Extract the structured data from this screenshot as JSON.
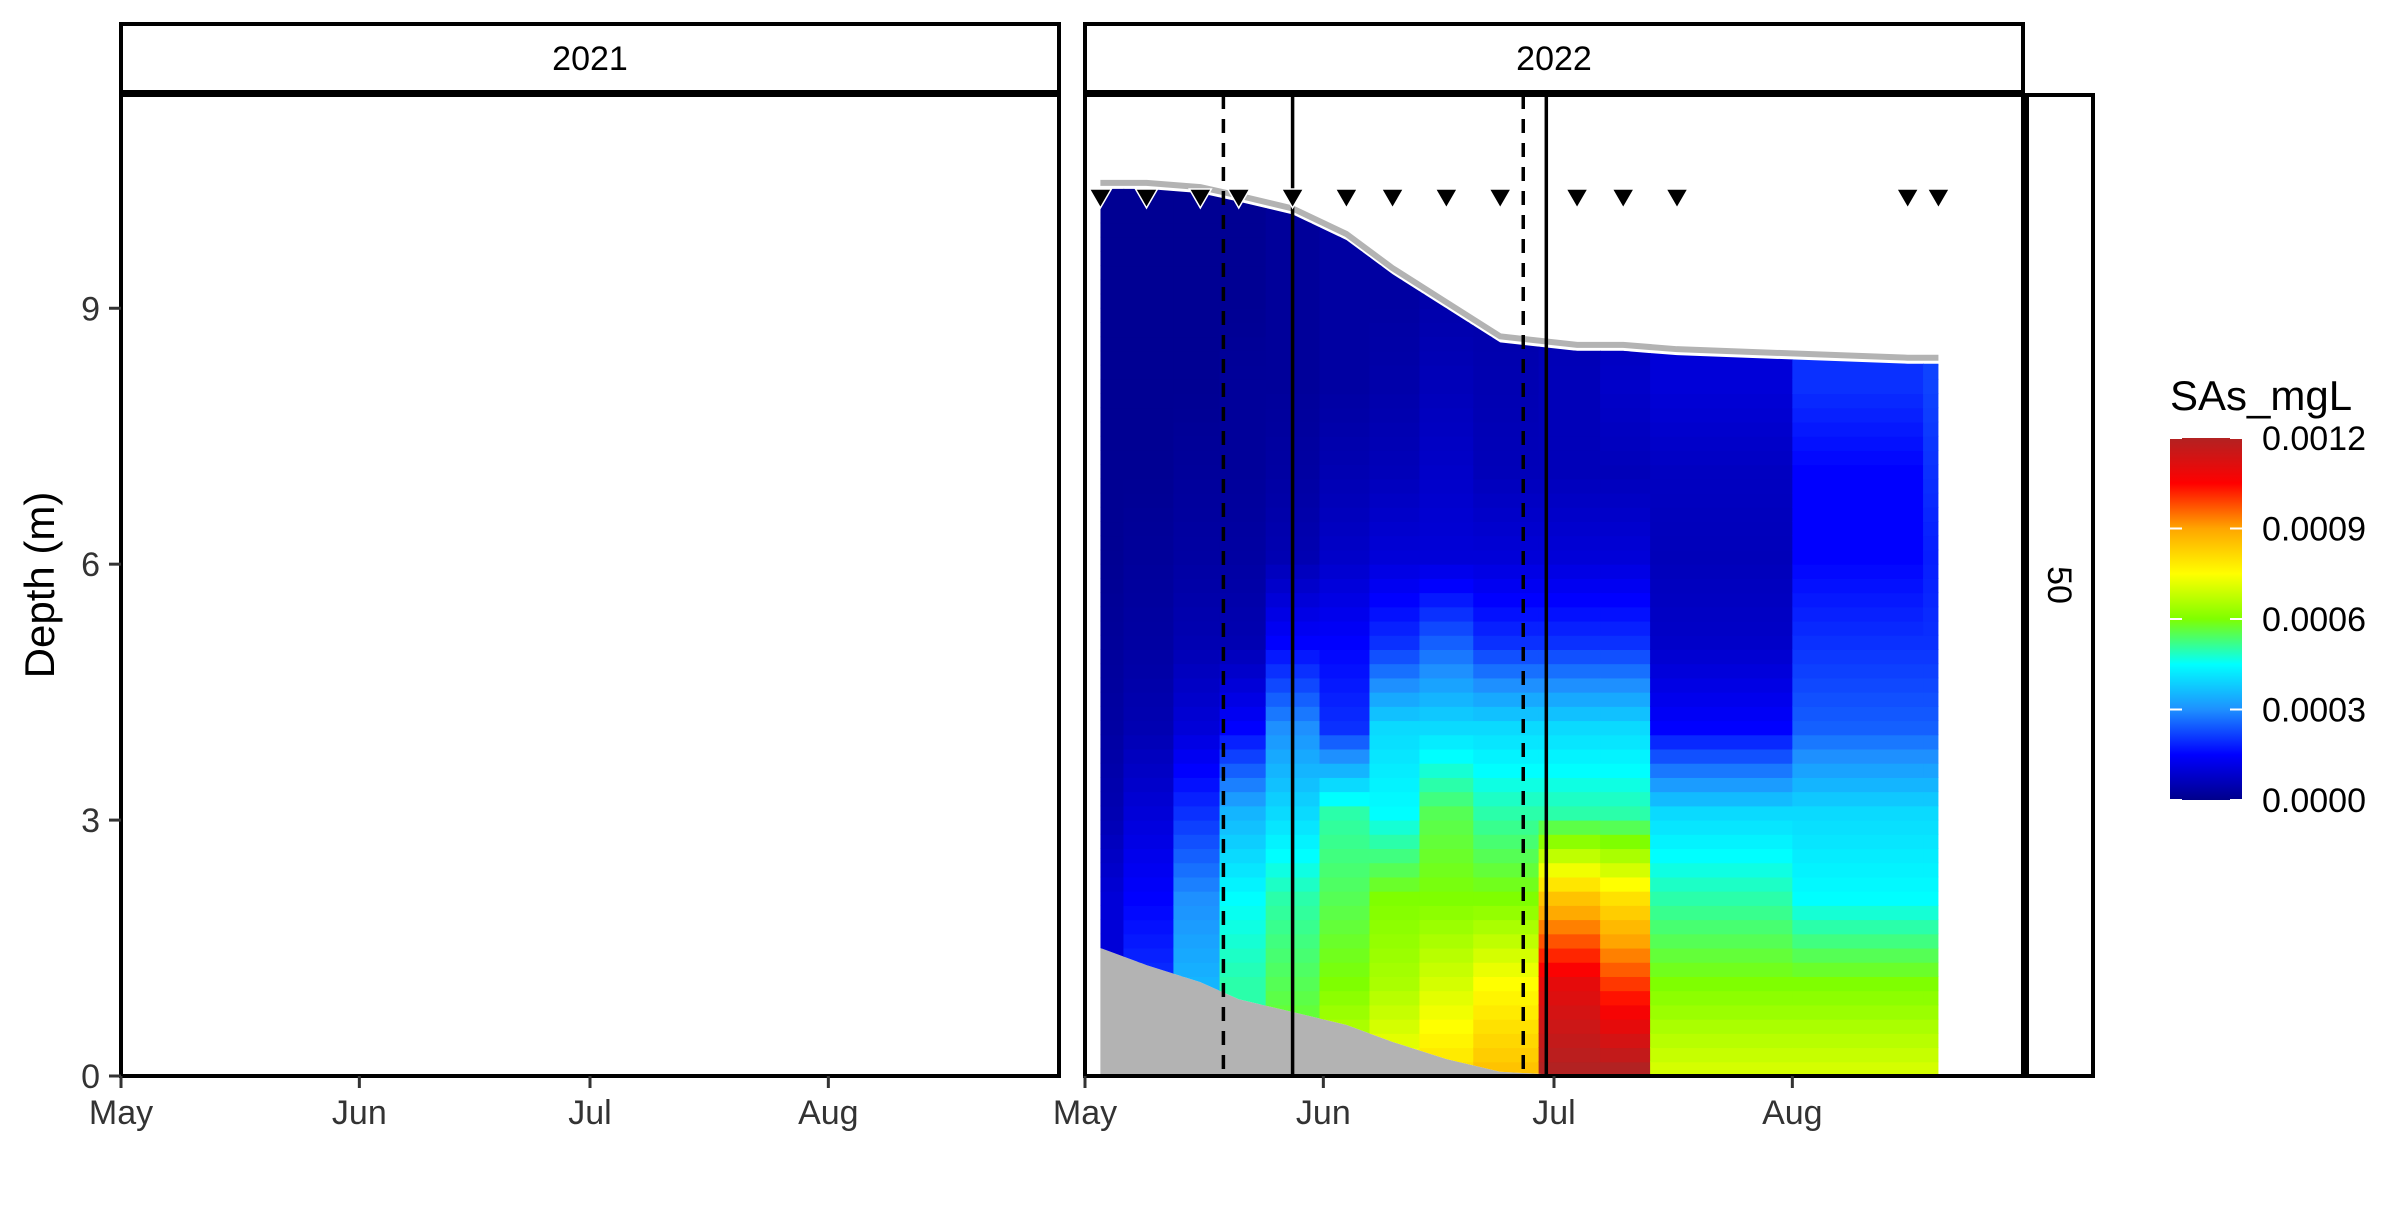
{
  "chart_data": {
    "type": "heatmap",
    "ylabel": "Depth (m)",
    "xlabel": "",
    "ylim": [
      0,
      11.5
    ],
    "y_ticks": [
      "0",
      "3",
      "6",
      "9"
    ],
    "x_ticks": [
      "May",
      "Jun",
      "Jul",
      "Aug"
    ],
    "facet_strip_right": "50",
    "panels": [
      {
        "label": "2021",
        "has_data": false
      },
      {
        "label": "2022",
        "has_data": true,
        "sample_dates": [
          "2022-05-03",
          "2022-05-09",
          "2022-05-16",
          "2022-05-21",
          "2022-05-28",
          "2022-06-04",
          "2022-06-10",
          "2022-06-17",
          "2022-06-24",
          "2022-07-04",
          "2022-07-10",
          "2022-07-17",
          "2022-08-16",
          "2022-08-20"
        ],
        "dashed_lines": [
          "2022-05-19",
          "2022-06-27"
        ],
        "solid_lines": [
          "2022-05-28",
          "2022-06-30"
        ],
        "surface_depth": [
          10.4,
          10.4,
          10.35,
          10.25,
          10.1,
          9.8,
          9.4,
          9.0,
          8.6,
          8.5,
          8.5,
          8.45,
          8.35,
          8.35
        ],
        "bottom_depth": [
          1.5,
          1.3,
          1.1,
          0.9,
          0.75,
          0.6,
          0.4,
          0.2,
          0.05,
          0,
          0,
          0,
          0,
          0
        ],
        "depth_levels": [
          0,
          1,
          2,
          3,
          4,
          5,
          6,
          7,
          8,
          9,
          10
        ],
        "values_mgL": [
          [
            0.0002,
            0.0002,
            0.00035,
            0.0005,
            0.0006,
            0.0007,
            0.00075,
            0.0008,
            0.00085,
            0.0012,
            0.0012,
            0.0007,
            0.0007,
            0.0007
          ],
          [
            0.0001,
            0.0002,
            0.00035,
            0.0005,
            0.00055,
            0.0006,
            0.00065,
            0.0007,
            0.00075,
            0.0011,
            0.001,
            0.0006,
            0.0006,
            0.0006
          ],
          [
            0.0001,
            0.00015,
            0.0003,
            0.00045,
            0.0005,
            0.00055,
            0.0006,
            0.0006,
            0.0006,
            0.00085,
            0.0008,
            0.0005,
            0.00045,
            0.00045
          ],
          [
            5e-05,
            0.0001,
            0.0002,
            0.00035,
            0.0004,
            0.0005,
            0.00045,
            0.00055,
            0.0005,
            0.0005,
            0.0005,
            0.0004,
            0.0004,
            0.0004
          ],
          [
            3e-05,
            5e-05,
            0.0001,
            0.00015,
            0.0003,
            0.0002,
            0.0004,
            0.0004,
            0.0004,
            0.0004,
            0.0004,
            0.00015,
            0.00025,
            0.00025
          ],
          [
            2e-05,
            3e-05,
            5e-05,
            5e-05,
            0.00015,
            0.00015,
            0.0002,
            0.00025,
            0.0002,
            0.0002,
            0.0002,
            8e-05,
            0.0002,
            0.0002
          ],
          [
            1e-05,
            2e-05,
            3e-05,
            3e-05,
            5e-05,
            8e-05,
            0.0001,
            0.0001,
            0.0001,
            0.0001,
            0.0001,
            6e-05,
            0.00015,
            0.00018
          ],
          [
            1e-05,
            1e-05,
            2e-05,
            2e-05,
            3e-05,
            5e-05,
            6e-05,
            8e-05,
            6e-05,
            6e-05,
            6e-05,
            7e-05,
            0.00015,
            0.0002
          ],
          [
            1e-05,
            1e-05,
            1e-05,
            2e-05,
            2e-05,
            3e-05,
            4e-05,
            6e-05,
            5e-05,
            6e-05,
            8e-05,
            0.0001,
            0.0002,
            0.00022
          ],
          [
            1e-05,
            1e-05,
            1e-05,
            1e-05,
            2e-05,
            3e-05,
            3e-05,
            4e-05,
            4e-05,
            5e-05,
            6e-05,
            0.0001,
            0.0002,
            0.00022
          ],
          [
            1e-05,
            1e-05,
            1e-05,
            1e-05,
            2e-05,
            3e-05,
            3e-05,
            4e-05,
            4e-05,
            5e-05,
            6e-05,
            0.0001,
            0.0002,
            0.00022
          ]
        ]
      }
    ],
    "legend": {
      "title": "SAs_mgL",
      "labels": [
        "0.0012",
        "0.0009",
        "0.0006",
        "0.0003",
        "0.0000"
      ],
      "range": [
        0,
        0.0012
      ],
      "colors": [
        "#00008b",
        "#0000ff",
        "#1e90ff",
        "#00ffff",
        "#7fff00",
        "#ffff00",
        "#ffa500",
        "#ff0000",
        "#b22222"
      ],
      "position": "right"
    },
    "colors": {
      "sediment": "#b3b3b3",
      "marker": "#000000"
    }
  }
}
